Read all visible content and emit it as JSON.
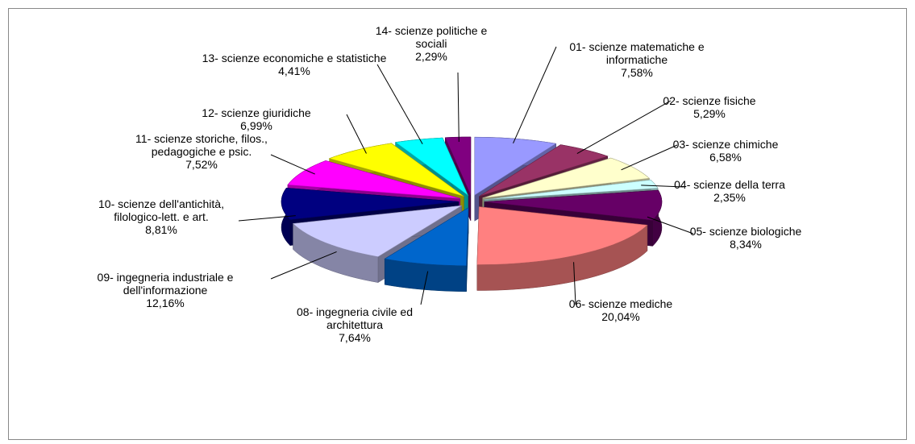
{
  "chart_data": {
    "type": "pie",
    "categories": [
      "01- scienze matematiche e informatiche",
      "02- scienze fisiche",
      "03- scienze chimiche",
      "04- scienze della terra",
      "05- scienze biologiche",
      "06- scienze mediche",
      "08- ingegneria civile ed architettura",
      "09- ingegneria industriale e dell'informazione",
      "10- scienze dell'antichità, filologico-lett. e art.",
      "11- scienze storiche, filos., pedagogiche e psic.",
      "12- scienze giuridiche",
      "13- scienze economiche e statistiche",
      "14- scienze politiche e sociali"
    ],
    "values": [
      7.58,
      5.29,
      6.58,
      2.35,
      8.34,
      20.04,
      7.64,
      12.16,
      8.81,
      7.52,
      6.99,
      4.41,
      2.29
    ],
    "value_labels": [
      "7,58%",
      "5,29%",
      "6,58%",
      "2,35%",
      "8,34%",
      "20,04%",
      "7,64%",
      "12,16%",
      "8,81%",
      "7,52%",
      "6,99%",
      "4,41%",
      "2,29%"
    ],
    "colors": [
      "#9999ff",
      "#993366",
      "#ffffcc",
      "#ccffff",
      "#660066",
      "#ff8080",
      "#0066cc",
      "#ccccff",
      "#000080",
      "#ff00ff",
      "#ffff00",
      "#00ffff",
      "#800080"
    ]
  }
}
